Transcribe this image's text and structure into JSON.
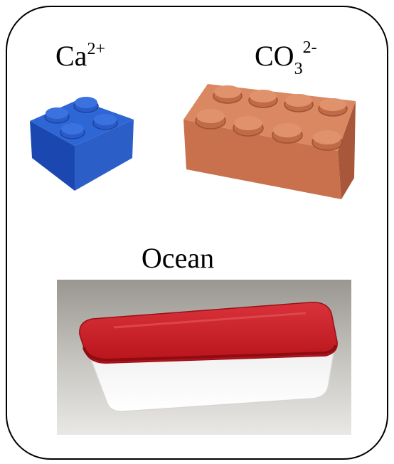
{
  "labels": {
    "calcium": {
      "symbol": "Ca",
      "charge": "2+"
    },
    "carbonate": {
      "symbol": "CO",
      "subscript": "3",
      "charge": "2-"
    }
  },
  "ocean": {
    "label": "Ocean"
  }
}
